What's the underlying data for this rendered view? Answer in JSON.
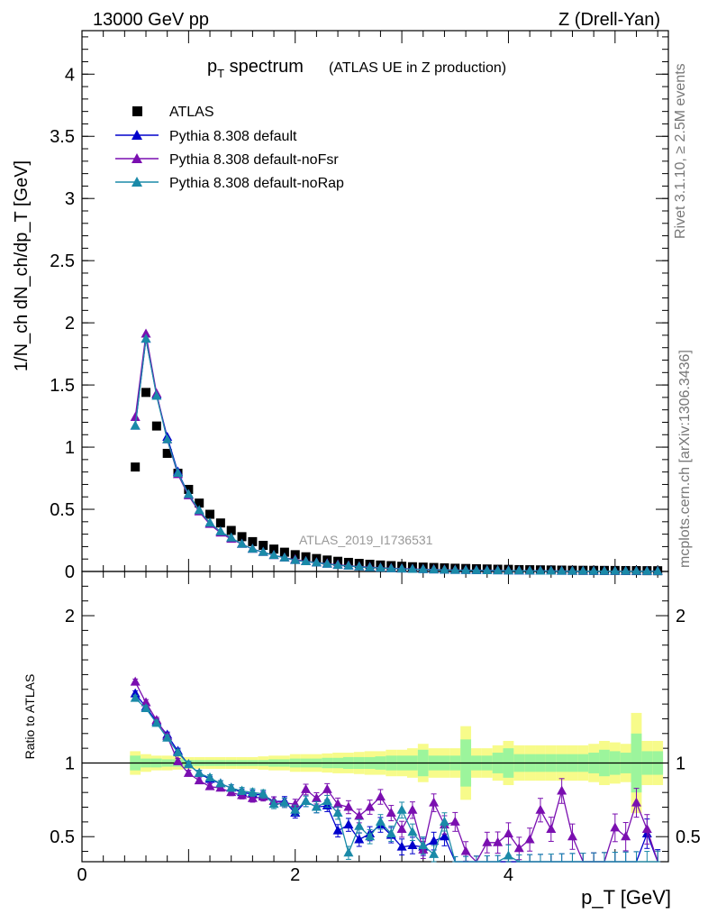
{
  "header": {
    "left": "13000 GeV pp",
    "right": "Z (Drell-Yan)"
  },
  "title": {
    "main_p": "p",
    "main_sub": "T",
    "main_rest": " spectrum",
    "paren": "(ATLAS UE in Z production)"
  },
  "axes": {
    "ylabel_top": "1/N_ch dN_ch/dp_T [GeV]",
    "ylabel_bottom": "Ratio to ATLAS",
    "xlabel": "p_T [GeV]",
    "top_ticks": [
      "0",
      "0.5",
      "1",
      "1.5",
      "2",
      "2.5",
      "3",
      "3.5",
      "4"
    ],
    "bottom_ticks": [
      "0.5",
      "1",
      "2"
    ],
    "x_ticks": [
      "0",
      "2",
      "4"
    ]
  },
  "side_text": {
    "rivet": "Rivet 3.1.10, ≥ 2.5M events",
    "mcplots": "mcplots.cern.ch [arXiv:1306.3436]"
  },
  "watermark": "ATLAS_2019_I1736531",
  "legend": {
    "atlas": "ATLAS",
    "s1": "Pythia 8.308 default",
    "s2": "Pythia 8.308 default-noFsr",
    "s3": "Pythia 8.308 default-noRap"
  },
  "colors": {
    "atlas": "#000000",
    "s1": "#0000cc",
    "s2": "#7a0fb0",
    "s3": "#1a8aa8",
    "band_inner": "#9cf59c",
    "band_outer": "#f7fb8a"
  },
  "chart_data": [
    {
      "type": "scatter",
      "panel": "main",
      "xlim": [
        0,
        5.5
      ],
      "ylim": [
        0,
        4.35
      ],
      "x": [
        0.5,
        0.6,
        0.7,
        0.8,
        0.9,
        1.0,
        1.1,
        1.2,
        1.3,
        1.4,
        1.5,
        1.6,
        1.7,
        1.8,
        1.9,
        2.0,
        2.1,
        2.2,
        2.3,
        2.4,
        2.5,
        2.6,
        2.7,
        2.8,
        2.9,
        3.0,
        3.1,
        3.2,
        3.3,
        3.4,
        3.5,
        3.6,
        3.7,
        3.8,
        3.9,
        4.0,
        4.1,
        4.2,
        4.3,
        4.4,
        4.5,
        4.6,
        4.7,
        4.8,
        4.9,
        5.0,
        5.1,
        5.2,
        5.3,
        5.4
      ],
      "series": [
        {
          "name": "ATLAS",
          "values": [
            0.84,
            1.44,
            1.17,
            0.95,
            0.79,
            0.66,
            0.55,
            0.46,
            0.39,
            0.33,
            0.28,
            0.24,
            0.21,
            0.18,
            0.155,
            0.135,
            0.118,
            0.104,
            0.092,
            0.082,
            0.073,
            0.065,
            0.058,
            0.052,
            0.047,
            0.042,
            0.038,
            0.035,
            0.032,
            0.029,
            0.026,
            0.024,
            0.022,
            0.02,
            0.018,
            0.017,
            0.015,
            0.014,
            0.013,
            0.012,
            0.011,
            0.01,
            0.0095,
            0.009,
            0.0085,
            0.008,
            0.0075,
            0.007,
            0.0065,
            0.006
          ]
        },
        {
          "name": "Pythia 8.308 default",
          "values": [
            1.17,
            1.87,
            1.42,
            1.08,
            0.8,
            0.62,
            0.49,
            0.39,
            0.32,
            0.27,
            0.22,
            0.18,
            0.155,
            0.13,
            0.11,
            0.09,
            0.08,
            0.07,
            0.06,
            0.05,
            0.044,
            0.038,
            0.032,
            0.028,
            0.024,
            0.021,
            0.018,
            0.016,
            0.014,
            0.012,
            0.01,
            0.009,
            0.008,
            0.007,
            0.006,
            0.0055,
            0.005,
            0.0045,
            0.004,
            0.0035,
            0.003,
            0.0028,
            0.0025,
            0.0022,
            0.002,
            0.0018,
            0.0016,
            0.0014,
            0.0012,
            0.001
          ]
        },
        {
          "name": "Pythia 8.308 default-noFsr",
          "values": [
            1.24,
            1.91,
            1.43,
            1.06,
            0.78,
            0.61,
            0.48,
            0.38,
            0.31,
            0.26,
            0.22,
            0.18,
            0.155,
            0.13,
            0.11,
            0.095,
            0.082,
            0.072,
            0.063,
            0.054,
            0.047,
            0.04,
            0.035,
            0.03,
            0.026,
            0.023,
            0.02,
            0.018,
            0.016,
            0.014,
            0.012,
            0.011,
            0.01,
            0.009,
            0.008,
            0.007,
            0.006,
            0.0055,
            0.005,
            0.0045,
            0.004,
            0.0035,
            0.003,
            0.0028,
            0.0025,
            0.0022,
            0.002,
            0.0018,
            0.0016,
            0.0014
          ]
        },
        {
          "name": "Pythia 8.308 default-noRap",
          "values": [
            1.17,
            1.87,
            1.41,
            1.06,
            0.79,
            0.62,
            0.49,
            0.39,
            0.32,
            0.27,
            0.22,
            0.18,
            0.155,
            0.13,
            0.11,
            0.09,
            0.08,
            0.07,
            0.06,
            0.05,
            0.044,
            0.038,
            0.032,
            0.028,
            0.024,
            0.021,
            0.018,
            0.016,
            0.014,
            0.012,
            0.01,
            0.009,
            0.008,
            0.007,
            0.006,
            0.0055,
            0.005,
            0.0045,
            0.004,
            0.0035,
            0.003,
            0.0028,
            0.0025,
            0.0022,
            0.002,
            0.0018,
            0.0016,
            0.0014,
            0.0012,
            0.001
          ]
        }
      ]
    },
    {
      "type": "line",
      "panel": "ratio",
      "xlim": [
        0,
        5.5
      ],
      "ylim": [
        0.33,
        2.3
      ],
      "x": [
        0.5,
        0.6,
        0.7,
        0.8,
        0.9,
        1.0,
        1.1,
        1.2,
        1.3,
        1.4,
        1.5,
        1.6,
        1.7,
        1.8,
        1.9,
        2.0,
        2.1,
        2.2,
        2.3,
        2.4,
        2.5,
        2.6,
        2.7,
        2.8,
        2.9,
        3.0,
        3.1,
        3.2,
        3.3,
        3.4,
        3.5,
        3.6,
        3.7,
        3.8,
        3.9,
        4.0,
        4.1,
        4.2,
        4.3,
        4.4,
        4.5,
        4.6,
        4.7,
        4.8,
        4.9,
        5.0,
        5.1,
        5.2,
        5.3,
        5.4
      ],
      "band_inner": [
        0.05,
        0.03,
        0.03,
        0.025,
        0.025,
        0.02,
        0.02,
        0.02,
        0.02,
        0.02,
        0.02,
        0.02,
        0.02,
        0.025,
        0.025,
        0.03,
        0.03,
        0.03,
        0.035,
        0.035,
        0.04,
        0.04,
        0.04,
        0.045,
        0.05,
        0.05,
        0.05,
        0.09,
        0.05,
        0.05,
        0.05,
        0.16,
        0.05,
        0.05,
        0.07,
        0.1,
        0.06,
        0.06,
        0.06,
        0.06,
        0.06,
        0.06,
        0.06,
        0.07,
        0.09,
        0.08,
        0.07,
        0.2,
        0.08,
        0.08
      ],
      "band_outer": [
        0.08,
        0.06,
        0.05,
        0.05,
        0.045,
        0.04,
        0.04,
        0.04,
        0.04,
        0.04,
        0.04,
        0.04,
        0.045,
        0.05,
        0.05,
        0.06,
        0.06,
        0.06,
        0.065,
        0.07,
        0.07,
        0.075,
        0.08,
        0.08,
        0.09,
        0.09,
        0.1,
        0.13,
        0.1,
        0.1,
        0.1,
        0.25,
        0.1,
        0.1,
        0.12,
        0.15,
        0.12,
        0.12,
        0.12,
        0.12,
        0.12,
        0.12,
        0.12,
        0.13,
        0.15,
        0.14,
        0.13,
        0.34,
        0.15,
        0.15
      ],
      "series": [
        {
          "name": "Pythia 8.308 default",
          "values": [
            1.47,
            1.38,
            1.28,
            1.19,
            1.08,
            0.99,
            0.93,
            0.89,
            0.86,
            0.83,
            0.8,
            0.79,
            0.78,
            0.74,
            0.74,
            0.66,
            0.74,
            0.7,
            0.71,
            0.54,
            0.58,
            0.48,
            0.52,
            0.58,
            0.51,
            0.43,
            0.44,
            0.43,
            0.47,
            0.5,
            0.3,
            0.3,
            0.3,
            0.3,
            0.3,
            0.3,
            0.3,
            0.3,
            0.3,
            0.3,
            0.3,
            0.3,
            0.3,
            0.3,
            0.3,
            0.3,
            0.3,
            0.3,
            0.52,
            0.31
          ]
        },
        {
          "name": "Pythia 8.308 default-noFsr",
          "values": [
            1.55,
            1.41,
            1.29,
            1.18,
            1.01,
            0.93,
            0.88,
            0.84,
            0.83,
            0.8,
            0.78,
            0.76,
            0.77,
            0.74,
            0.73,
            0.72,
            0.82,
            0.76,
            0.82,
            0.72,
            0.7,
            0.64,
            0.7,
            0.77,
            0.66,
            0.55,
            0.68,
            0.41,
            0.73,
            0.58,
            0.6,
            0.4,
            0.3,
            0.46,
            0.46,
            0.52,
            0.42,
            0.48,
            0.68,
            0.55,
            0.81,
            0.5,
            0.3,
            0.3,
            0.3,
            0.56,
            0.5,
            0.73,
            0.55,
            0.3
          ]
        },
        {
          "name": "Pythia 8.308 default-noRap",
          "values": [
            1.44,
            1.37,
            1.27,
            1.17,
            1.07,
            0.99,
            0.93,
            0.9,
            0.86,
            0.83,
            0.81,
            0.8,
            0.79,
            0.72,
            0.73,
            0.68,
            0.74,
            0.7,
            0.74,
            0.66,
            0.39,
            0.57,
            0.5,
            0.6,
            0.52,
            0.68,
            0.53,
            0.44,
            0.38,
            0.6,
            0.3,
            0.3,
            0.3,
            0.3,
            0.3,
            0.37,
            0.3,
            0.3,
            0.3,
            0.3,
            0.3,
            0.3,
            0.3,
            0.3,
            0.3,
            0.3,
            0.3,
            0.3,
            0.3,
            0.3
          ]
        }
      ]
    }
  ]
}
